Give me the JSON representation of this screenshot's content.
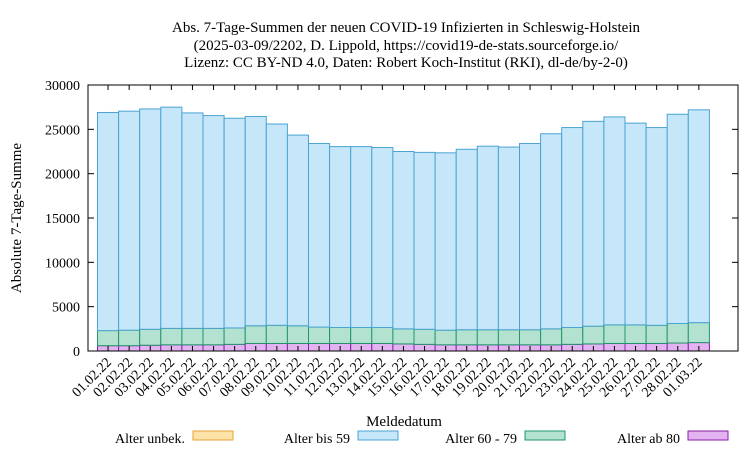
{
  "chart_data": {
    "type": "bar",
    "stacked": true,
    "title_lines": [
      "Abs. 7-Tage-Summen der neuen COVID-19 Infizierten in Schleswig-Holstein",
      "(2025-03-09/2202, D. Lippold, https://covid19-de-stats.sourceforge.io/",
      "Lizenz: CC BY-ND 4.0, Daten: Robert Koch-Institut (RKI), dl-de/by-2-0)"
    ],
    "xlabel": "Meldedatum",
    "ylabel": "Absolute 7-Tage-Summe",
    "ylim": [
      0,
      30000
    ],
    "yticks": [
      0,
      5000,
      10000,
      15000,
      20000,
      25000,
      30000
    ],
    "categories": [
      "01.02.22",
      "02.02.22",
      "03.02.22",
      "04.02.22",
      "05.02.22",
      "06.02.22",
      "07.02.22",
      "08.02.22",
      "09.02.22",
      "10.02.22",
      "11.02.22",
      "12.02.22",
      "13.02.22",
      "14.02.22",
      "15.02.22",
      "16.02.22",
      "17.02.22",
      "18.02.22",
      "19.02.22",
      "20.02.22",
      "21.02.22",
      "22.02.22",
      "23.02.22",
      "24.02.22",
      "25.02.22",
      "26.02.22",
      "27.02.22",
      "28.02.22",
      "01.03.22"
    ],
    "series": [
      {
        "name": "Alter unbek.",
        "color": "#fde3a7",
        "stroke": "#e8a33a",
        "values": [
          0,
          0,
          0,
          0,
          0,
          0,
          0,
          0,
          0,
          0,
          0,
          0,
          0,
          0,
          0,
          0,
          0,
          0,
          0,
          0,
          0,
          0,
          0,
          0,
          0,
          0,
          0,
          0,
          0
        ]
      },
      {
        "name": "Alter ab 80",
        "color": "#e2b3f0",
        "stroke": "#8a1ea8",
        "values": [
          600,
          600,
          650,
          700,
          700,
          700,
          750,
          850,
          850,
          850,
          850,
          850,
          850,
          850,
          800,
          750,
          700,
          700,
          700,
          700,
          700,
          700,
          750,
          800,
          850,
          850,
          850,
          900,
          950
        ]
      },
      {
        "name": "Alter 60 - 79",
        "color": "#b3e2d1",
        "stroke": "#23966b",
        "values": [
          1700,
          1750,
          1800,
          1850,
          1850,
          1850,
          1850,
          2000,
          2050,
          2000,
          1850,
          1800,
          1800,
          1800,
          1700,
          1700,
          1650,
          1700,
          1700,
          1700,
          1700,
          1800,
          1900,
          2000,
          2100,
          2100,
          2050,
          2200,
          2250
        ]
      },
      {
        "name": "Alter bis 59",
        "color": "#c6e6fa",
        "stroke": "#4ba3d3",
        "values": [
          24600,
          24700,
          24850,
          24950,
          24300,
          24000,
          23650,
          23600,
          22700,
          21500,
          20700,
          20400,
          20400,
          20300,
          20000,
          19950,
          20000,
          20350,
          20700,
          20600,
          21000,
          22000,
          22550,
          23100,
          23450,
          22750,
          22300,
          23600,
          24000
        ]
      }
    ],
    "legend": {
      "order": [
        "Alter unbek.",
        "Alter bis 59",
        "Alter 60 - 79",
        "Alter ab 80"
      ],
      "placement": "bottom"
    },
    "grid": false
  }
}
